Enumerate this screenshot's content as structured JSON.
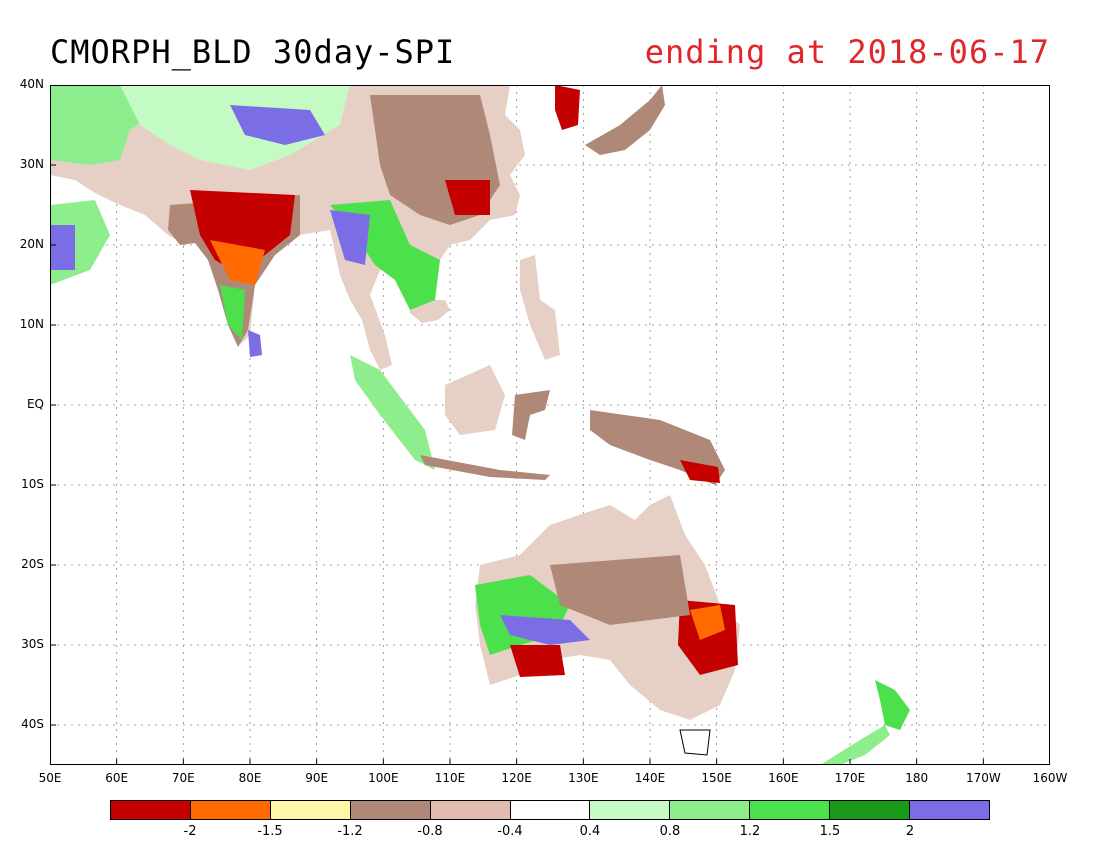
{
  "title": "CMORPH_BLD 30day-SPI",
  "subtitle": "ending at 2018-06-17",
  "map": {
    "lat_ticks": [
      "40N",
      "30N",
      "20N",
      "10N",
      "EQ",
      "10S",
      "20S",
      "30S",
      "40S"
    ],
    "lon_ticks": [
      "50E",
      "60E",
      "70E",
      "80E",
      "90E",
      "100E",
      "110E",
      "120E",
      "130E",
      "140E",
      "150E",
      "160E",
      "170E",
      "180",
      "170W",
      "160W"
    ],
    "lat_range": [
      -45,
      40
    ],
    "lon_range": [
      50,
      200
    ],
    "grid": true
  },
  "legend": {
    "colors": [
      "#c40000",
      "#ff6b00",
      "#fff7a8",
      "#b08878",
      "#e0bcb0",
      "#ffffff",
      "#c4fac4",
      "#8eee8e",
      "#4ce04c",
      "#1a9a1a",
      "#7b6de6"
    ],
    "labels": [
      "-2",
      "-1.5",
      "-1.2",
      "-0.8",
      "-0.4",
      "0.4",
      "0.8",
      "1.2",
      "1.5",
      "2"
    ]
  }
}
